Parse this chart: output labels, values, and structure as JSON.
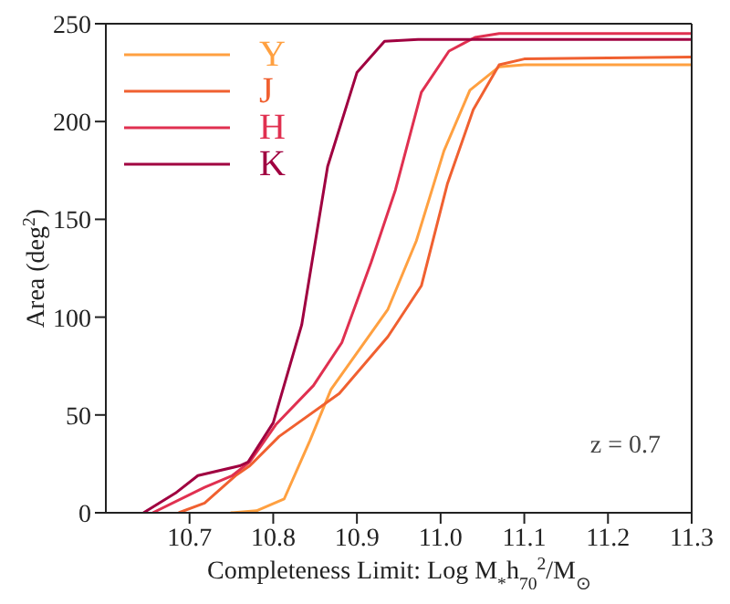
{
  "chart_data": {
    "type": "line",
    "xlabel": "Completeness Limit: Log M$_{*}$h$_{70}$$^{2}$/M$_{⊙}$",
    "ylabel": "Area (deg$^{2}$)",
    "xlim": [
      10.6,
      11.3
    ],
    "ylim": [
      0,
      250
    ],
    "xticks": [
      {
        "value": 10.7,
        "label": "10.7"
      },
      {
        "value": 10.8,
        "label": "10.8"
      },
      {
        "value": 10.9,
        "label": "10.9"
      },
      {
        "value": 11.0,
        "label": "11.0"
      },
      {
        "value": 11.1,
        "label": "11.1"
      },
      {
        "value": 11.2,
        "label": "11.2"
      },
      {
        "value": 11.3,
        "label": "11.3"
      }
    ],
    "yticks": [
      0,
      50,
      100,
      150,
      200,
      250
    ],
    "legend": "top left",
    "marker": "none",
    "line_style": "solid",
    "annotations": [
      "z = 0.7"
    ],
    "series": [
      {
        "name": "Y",
        "color": "#ffa040",
        "x": [
          10.749,
          10.78,
          10.813,
          10.844,
          10.869,
          10.937,
          10.971,
          11.004,
          11.035,
          11.07,
          11.1,
          11.3
        ],
        "values": [
          0,
          1,
          7,
          37,
          63,
          104,
          139,
          185,
          216,
          228,
          229,
          229
        ]
      },
      {
        "name": "J",
        "color": "#f06030",
        "x": [
          10.687,
          10.718,
          10.755,
          10.772,
          10.807,
          10.879,
          10.937,
          10.977,
          11.008,
          11.039,
          11.07,
          11.1,
          11.3
        ],
        "values": [
          0,
          5,
          19,
          24,
          39,
          61,
          90,
          116,
          168,
          206,
          229,
          232,
          233
        ]
      },
      {
        "name": "H",
        "color": "#e03050",
        "x": [
          10.656,
          10.718,
          10.751,
          10.772,
          10.803,
          10.848,
          10.882,
          10.917,
          10.946,
          10.977,
          11.01,
          11.041,
          11.07,
          11.3
        ],
        "values": [
          0,
          13,
          19,
          26,
          45,
          65,
          87,
          128,
          165,
          215,
          236,
          243,
          245,
          245
        ]
      },
      {
        "name": "K",
        "color": "#a00040",
        "x": [
          10.645,
          10.683,
          10.71,
          10.76,
          10.77,
          10.8,
          10.834,
          10.865,
          10.9,
          10.933,
          10.973,
          11.3
        ],
        "values": [
          0,
          10,
          19,
          24,
          26,
          46,
          96,
          177,
          225,
          241,
          242,
          242
        ]
      }
    ]
  }
}
